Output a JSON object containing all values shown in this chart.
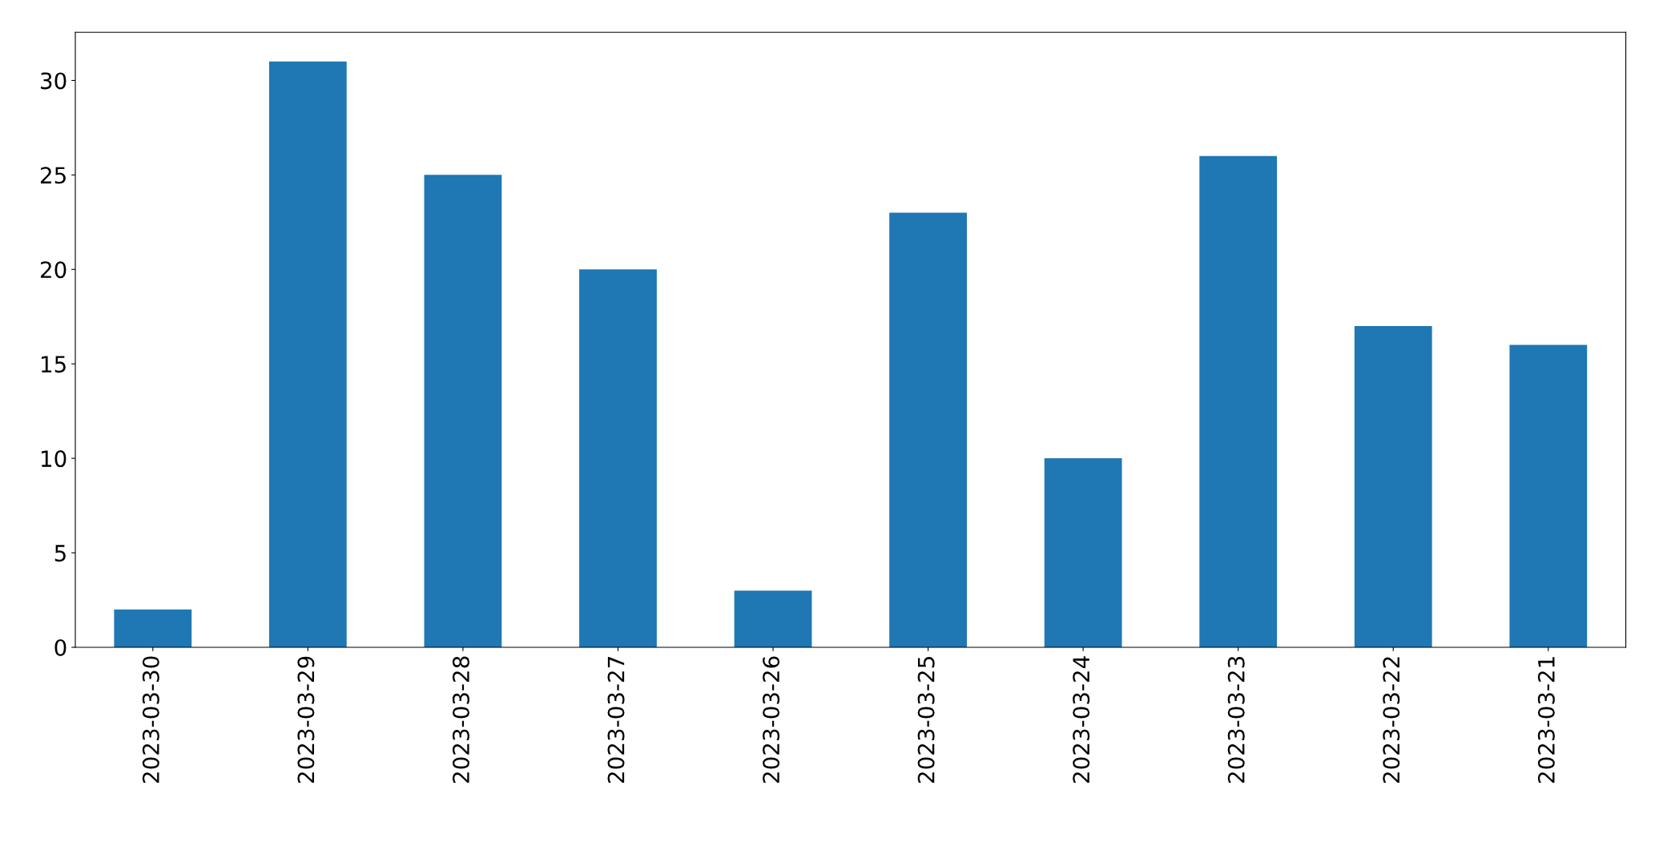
{
  "chart_data": {
    "type": "bar",
    "categories": [
      "2023-03-30",
      "2023-03-29",
      "2023-03-28",
      "2023-03-27",
      "2023-03-26",
      "2023-03-25",
      "2023-03-24",
      "2023-03-23",
      "2023-03-22",
      "2023-03-21"
    ],
    "values": [
      2,
      31,
      25,
      20,
      3,
      23,
      10,
      26,
      17,
      16
    ],
    "color": "#1f77b4",
    "ylim": [
      0,
      32.55
    ],
    "yticks": [
      0,
      5,
      10,
      15,
      20,
      25,
      30
    ],
    "grid": false,
    "legend": false
  }
}
